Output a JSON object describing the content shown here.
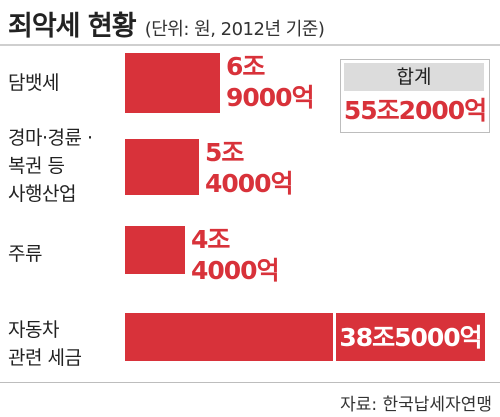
{
  "header": {
    "title": "죄악세 현황",
    "subtitle": "(단위: 원, 2012년 기준)"
  },
  "total": {
    "label": "합계",
    "value": "55조2000억"
  },
  "source": "자료: 한국납세자연맹",
  "chart_data": {
    "type": "bar",
    "orientation": "horizontal",
    "unit": "억 원",
    "title": "죄악세 현황",
    "categories": [
      [
        "담뱃세"
      ],
      [
        "경마·경륜 ·",
        "복권 등",
        "사행산업"
      ],
      [
        "주류"
      ],
      [
        "자동차",
        "관련 세금"
      ]
    ],
    "values": [
      69000,
      54000,
      44000,
      385000
    ],
    "value_labels": [
      [
        "6조",
        "9000억"
      ],
      [
        "5조",
        "4000억"
      ],
      [
        "4조",
        "4000억"
      ],
      [
        "38조5000억"
      ]
    ],
    "bar_break": true,
    "grid": false,
    "legend": "none",
    "colors": {
      "bar": "#d8323a"
    }
  }
}
